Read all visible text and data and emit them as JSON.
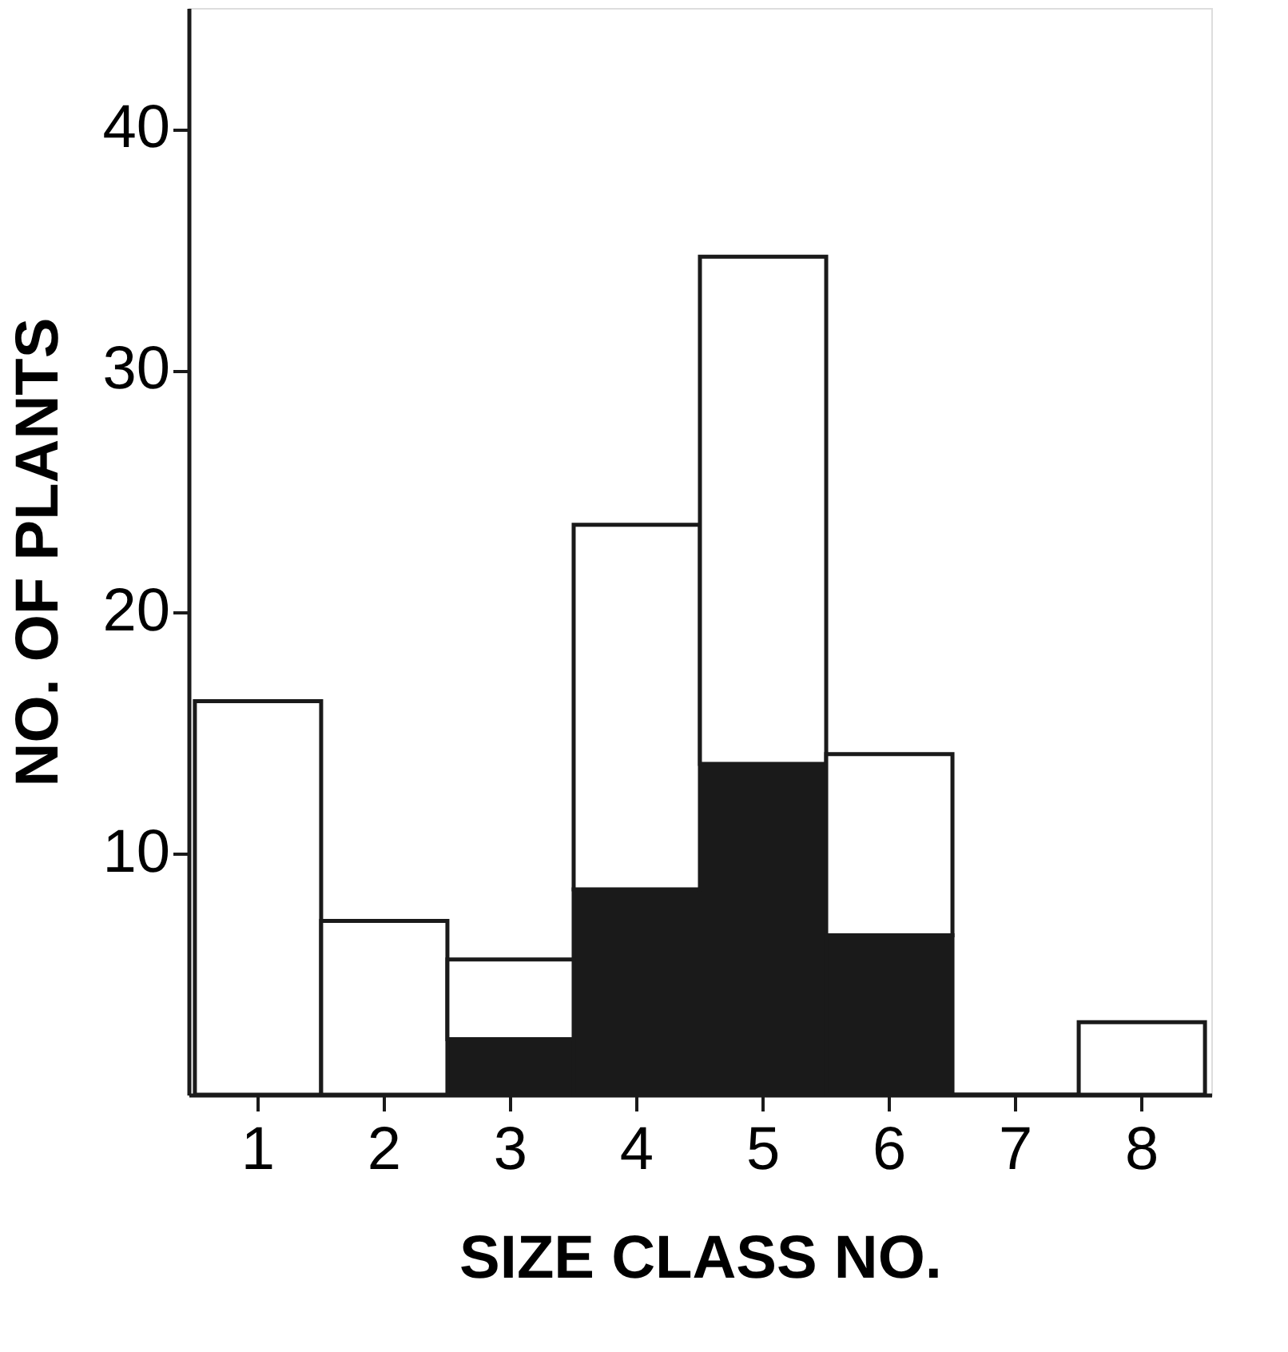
{
  "chart_data": {
    "type": "bar",
    "stacked": true,
    "xlabel": "SIZE   CLASS   NO.",
    "ylabel": "NO. OF  PLANTS",
    "categories": [
      "1",
      "2",
      "3",
      "4",
      "5",
      "6",
      "7",
      "8"
    ],
    "series": [
      {
        "color": "#1a1a1a",
        "values": [
          0,
          0,
          2.3,
          8.5,
          13.7,
          6.6,
          0,
          0
        ]
      },
      {
        "color": "#ffffff",
        "values": [
          16.3,
          7.2,
          3.3,
          15.1,
          21.0,
          7.5,
          0,
          3.0
        ]
      }
    ],
    "ylim": [
      0,
      45
    ],
    "yticks": [
      10,
      20,
      30,
      40
    ],
    "grid": false,
    "legend": false
  }
}
